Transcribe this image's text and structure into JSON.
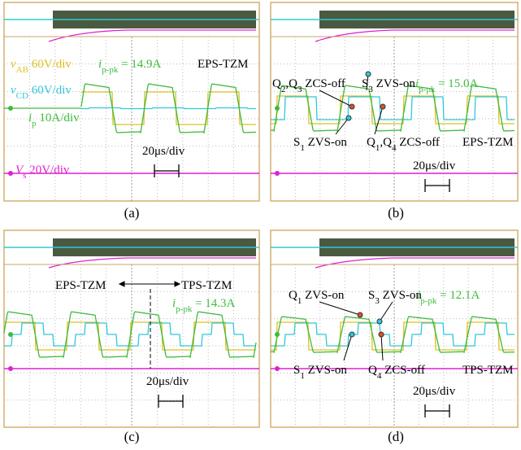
{
  "panels": [
    {
      "caption": "(a)",
      "labels": [
        {
          "segments": [
            "v",
            "AB",
            " 60V/div"
          ]
        },
        {
          "segments": [
            "v",
            "CD",
            " 60V/div"
          ]
        },
        {
          "segments": [
            "i",
            "p",
            " 10A/div"
          ]
        },
        {
          "segments": [
            "V",
            "s",
            " 20V/div"
          ]
        },
        {
          "segments": [
            "i",
            "p-pk",
            " = 14.9A"
          ]
        },
        {
          "segments": [
            "EPS-TZM"
          ]
        },
        {
          "segments": [
            "20μs/div"
          ]
        }
      ]
    },
    {
      "caption": "(b)",
      "labels": [
        {
          "segments": [
            "Q",
            "2",
            ",Q",
            "3",
            " ZCS-off"
          ]
        },
        {
          "segments": [
            "S",
            "3",
            " ZVS-on"
          ]
        },
        {
          "segments": [
            "i",
            "p-pk",
            " = 15.0A"
          ]
        },
        {
          "segments": [
            "S",
            "1",
            " ZVS-on"
          ]
        },
        {
          "segments": [
            "Q",
            "1",
            ",Q",
            "4",
            " ZCS-off"
          ]
        },
        {
          "segments": [
            "EPS-TZM"
          ]
        },
        {
          "segments": [
            "20μs/div"
          ]
        }
      ]
    },
    {
      "caption": "(c)",
      "labels": [
        {
          "segments": [
            "EPS-TZM"
          ]
        },
        {
          "segments": [
            "TPS-TZM"
          ]
        },
        {
          "segments": [
            "i",
            "p-pk",
            " = 14.3A"
          ]
        },
        {
          "segments": [
            "20μs/div"
          ]
        }
      ]
    },
    {
      "caption": "(d)",
      "labels": [
        {
          "segments": [
            "Q",
            "1",
            " ZVS-on"
          ]
        },
        {
          "segments": [
            "S",
            "3",
            " ZVS-on"
          ]
        },
        {
          "segments": [
            "i",
            "p-pk",
            " = 12.1A"
          ]
        },
        {
          "segments": [
            "S",
            "1",
            " ZVS-on"
          ]
        },
        {
          "segments": [
            "Q",
            "4",
            " ZCS-off"
          ]
        },
        {
          "segments": [
            "TPS-TZM"
          ]
        },
        {
          "segments": [
            "20μs/div"
          ]
        }
      ]
    }
  ]
}
